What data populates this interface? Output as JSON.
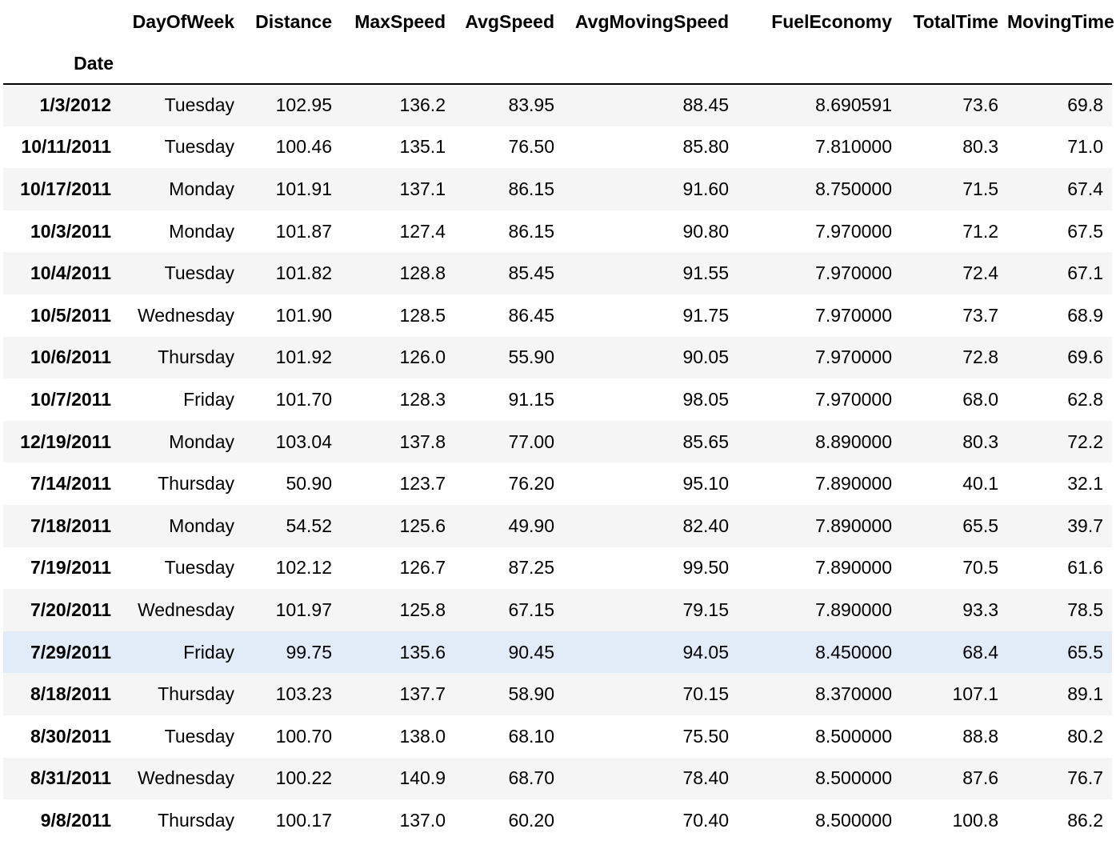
{
  "table": {
    "index_name": "Date",
    "columns": [
      "DayOfWeek",
      "Distance",
      "MaxSpeed",
      "AvgSpeed",
      "AvgMovingSpeed",
      "FuelEconomy",
      "TotalTime",
      "MovingTime"
    ],
    "hovered_row": 13,
    "rows": [
      {
        "date": "1/3/2012",
        "values": [
          "Tuesday",
          "102.95",
          "136.2",
          "83.95",
          "88.45",
          "8.690591",
          "73.6",
          "69.8"
        ]
      },
      {
        "date": "10/11/2011",
        "values": [
          "Tuesday",
          "100.46",
          "135.1",
          "76.50",
          "85.80",
          "7.810000",
          "80.3",
          "71.0"
        ]
      },
      {
        "date": "10/17/2011",
        "values": [
          "Monday",
          "101.91",
          "137.1",
          "86.15",
          "91.60",
          "8.750000",
          "71.5",
          "67.4"
        ]
      },
      {
        "date": "10/3/2011",
        "values": [
          "Monday",
          "101.87",
          "127.4",
          "86.15",
          "90.80",
          "7.970000",
          "71.2",
          "67.5"
        ]
      },
      {
        "date": "10/4/2011",
        "values": [
          "Tuesday",
          "101.82",
          "128.8",
          "85.45",
          "91.55",
          "7.970000",
          "72.4",
          "67.1"
        ]
      },
      {
        "date": "10/5/2011",
        "values": [
          "Wednesday",
          "101.90",
          "128.5",
          "86.45",
          "91.75",
          "7.970000",
          "73.7",
          "68.9"
        ]
      },
      {
        "date": "10/6/2011",
        "values": [
          "Thursday",
          "101.92",
          "126.0",
          "55.90",
          "90.05",
          "7.970000",
          "72.8",
          "69.6"
        ]
      },
      {
        "date": "10/7/2011",
        "values": [
          "Friday",
          "101.70",
          "128.3",
          "91.15",
          "98.05",
          "7.970000",
          "68.0",
          "62.8"
        ]
      },
      {
        "date": "12/19/2011",
        "values": [
          "Monday",
          "103.04",
          "137.8",
          "77.00",
          "85.65",
          "8.890000",
          "80.3",
          "72.2"
        ]
      },
      {
        "date": "7/14/2011",
        "values": [
          "Thursday",
          "50.90",
          "123.7",
          "76.20",
          "95.10",
          "7.890000",
          "40.1",
          "32.1"
        ]
      },
      {
        "date": "7/18/2011",
        "values": [
          "Monday",
          "54.52",
          "125.6",
          "49.90",
          "82.40",
          "7.890000",
          "65.5",
          "39.7"
        ]
      },
      {
        "date": "7/19/2011",
        "values": [
          "Tuesday",
          "102.12",
          "126.7",
          "87.25",
          "99.50",
          "7.890000",
          "70.5",
          "61.6"
        ]
      },
      {
        "date": "7/20/2011",
        "values": [
          "Wednesday",
          "101.97",
          "125.8",
          "67.15",
          "79.15",
          "7.890000",
          "93.3",
          "78.5"
        ]
      },
      {
        "date": "7/29/2011",
        "values": [
          "Friday",
          "99.75",
          "135.6",
          "90.45",
          "94.05",
          "8.450000",
          "68.4",
          "65.5"
        ]
      },
      {
        "date": "8/18/2011",
        "values": [
          "Thursday",
          "103.23",
          "137.7",
          "58.90",
          "70.15",
          "8.370000",
          "107.1",
          "89.1"
        ]
      },
      {
        "date": "8/30/2011",
        "values": [
          "Tuesday",
          "100.70",
          "138.0",
          "68.10",
          "75.50",
          "8.500000",
          "88.8",
          "80.2"
        ]
      },
      {
        "date": "8/31/2011",
        "values": [
          "Wednesday",
          "100.22",
          "140.9",
          "68.70",
          "78.40",
          "8.500000",
          "87.6",
          "76.7"
        ]
      },
      {
        "date": "9/8/2011",
        "values": [
          "Thursday",
          "100.17",
          "137.0",
          "60.20",
          "70.40",
          "8.500000",
          "100.8",
          "86.2"
        ]
      }
    ]
  },
  "colors": {
    "stripe": "#f5f5f5",
    "hover": "#e1ecf8",
    "rule": "#000000"
  }
}
